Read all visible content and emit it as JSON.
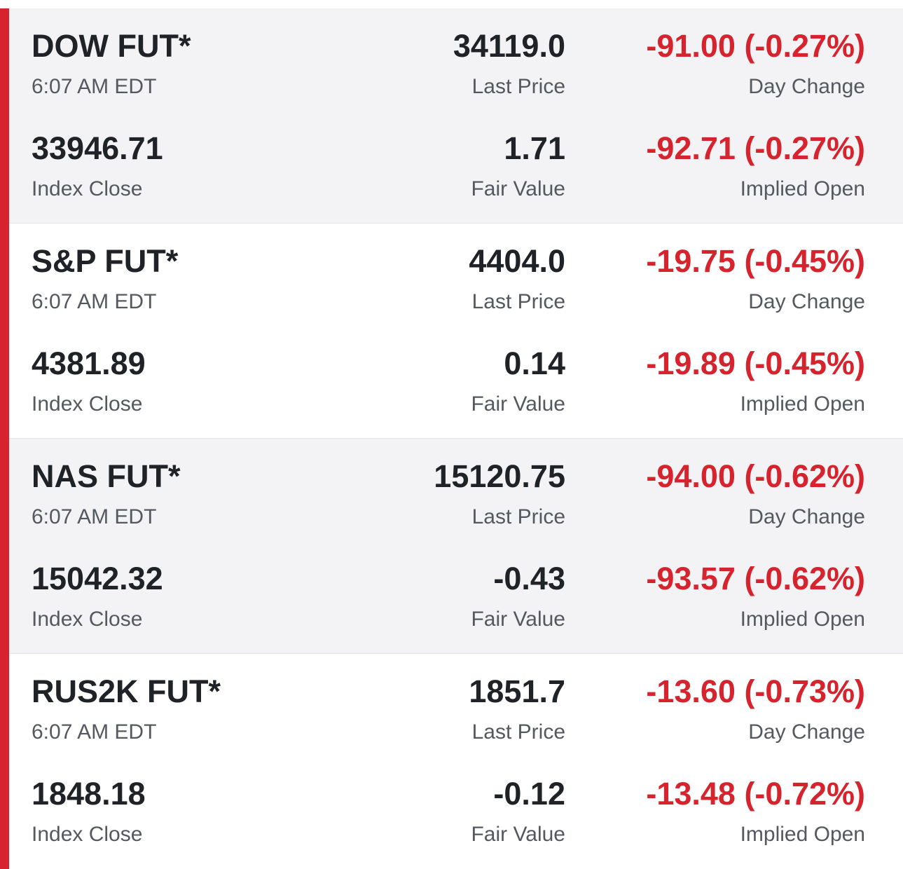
{
  "colors": {
    "accent": "#d6242e",
    "negative": "#d6242e",
    "text_primary": "#1f2227",
    "text_secondary": "#55585e",
    "row_shade": "#f3f3f6"
  },
  "futures": [
    {
      "name": "DOW FUT*",
      "time": "6:07 AM EDT",
      "last_price": "34119.0",
      "last_price_label": "Last Price",
      "day_change": "-91.00 (-0.27%)",
      "day_change_label": "Day Change",
      "index_close": "33946.71",
      "index_close_label": "Index Close",
      "fair_value": "1.71",
      "fair_value_label": "Fair Value",
      "implied_open": "-92.71 (-0.27%)",
      "implied_open_label": "Implied Open"
    },
    {
      "name": "S&P FUT*",
      "time": "6:07 AM EDT",
      "last_price": "4404.0",
      "last_price_label": "Last Price",
      "day_change": "-19.75 (-0.45%)",
      "day_change_label": "Day Change",
      "index_close": "4381.89",
      "index_close_label": "Index Close",
      "fair_value": "0.14",
      "fair_value_label": "Fair Value",
      "implied_open": "-19.89 (-0.45%)",
      "implied_open_label": "Implied Open"
    },
    {
      "name": "NAS FUT*",
      "time": "6:07 AM EDT",
      "last_price": "15120.75",
      "last_price_label": "Last Price",
      "day_change": "-94.00 (-0.62%)",
      "day_change_label": "Day Change",
      "index_close": "15042.32",
      "index_close_label": "Index Close",
      "fair_value": "-0.43",
      "fair_value_label": "Fair Value",
      "implied_open": "-93.57 (-0.62%)",
      "implied_open_label": "Implied Open"
    },
    {
      "name": "RUS2K FUT*",
      "time": "6:07 AM EDT",
      "last_price": "1851.7",
      "last_price_label": "Last Price",
      "day_change": "-13.60 (-0.73%)",
      "day_change_label": "Day Change",
      "index_close": "1848.18",
      "index_close_label": "Index Close",
      "fair_value": "-0.12",
      "fair_value_label": "Fair Value",
      "implied_open": "-13.48 (-0.72%)",
      "implied_open_label": "Implied Open"
    }
  ]
}
